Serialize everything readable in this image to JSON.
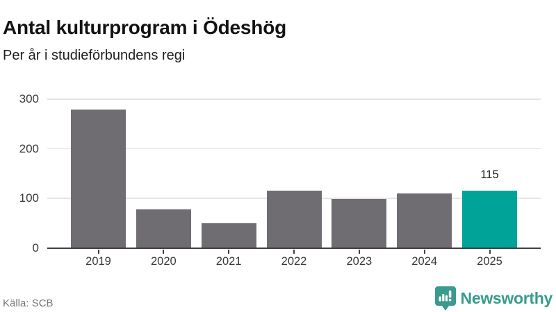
{
  "title": "Antal kulturprogram i Ödeshög",
  "subtitle": "Per år i studieförbundens regi",
  "source": "Källa: SCB",
  "brand": {
    "name": "Newsworthy"
  },
  "colors": {
    "bar": "#6f6c72",
    "highlight_bar": "#00a398",
    "brand_teal": "#389b8d",
    "grid": "#e4e4e4",
    "axis": "#3f3f3f",
    "tick_text": "#39393b",
    "title_text": "#131313",
    "source_text": "#76767a"
  },
  "chart_data": {
    "type": "bar",
    "title": "Antal kulturprogram i Ödeshög",
    "subtitle": "Per år i studieförbundens regi",
    "categories": [
      "2019",
      "2020",
      "2021",
      "2022",
      "2023",
      "2024",
      "2025"
    ],
    "values": [
      279,
      78,
      50,
      115,
      98,
      110,
      115
    ],
    "highlight_category": "2025",
    "annotations": [
      {
        "category": "2025",
        "text": "115"
      }
    ],
    "xlabel": "",
    "ylabel": "",
    "ylim": [
      0,
      300
    ],
    "yticks": [
      0,
      100,
      200,
      300
    ],
    "grid": true,
    "legend": false,
    "source_note": "Källa: SCB"
  }
}
